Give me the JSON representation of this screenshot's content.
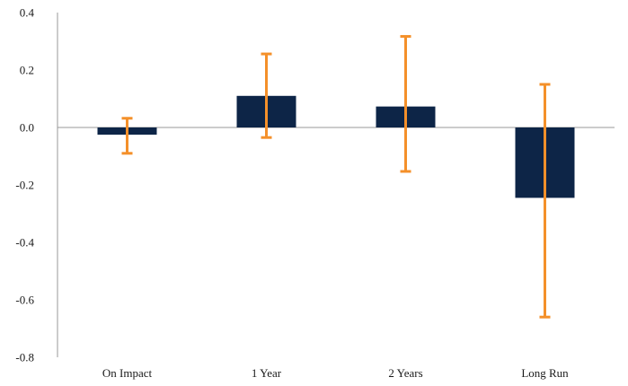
{
  "chart_data": {
    "type": "bar",
    "categories": [
      "On Impact",
      "1 Year",
      "2 Years",
      "Long Run"
    ],
    "values": [
      -0.025,
      0.11,
      0.073,
      -0.245
    ],
    "error_bars": {
      "upper": [
        0.032,
        0.256,
        0.317,
        0.15
      ],
      "lower": [
        -0.09,
        -0.035,
        -0.153,
        -0.66
      ]
    },
    "ylim": [
      -0.8,
      0.4
    ],
    "yticks": [
      "0.4",
      "0.2",
      "0.0",
      "-0.2",
      "-0.4",
      "-0.6",
      "-0.8"
    ],
    "ytick_values": [
      0.4,
      0.2,
      0.0,
      -0.2,
      -0.4,
      -0.6,
      -0.8
    ],
    "title": "",
    "xlabel": "",
    "ylabel": "",
    "grid": false,
    "legend": "none",
    "colors": {
      "bar": "#0d2547",
      "error_bar": "#f4902a",
      "axis": "#9a9a9a"
    }
  }
}
